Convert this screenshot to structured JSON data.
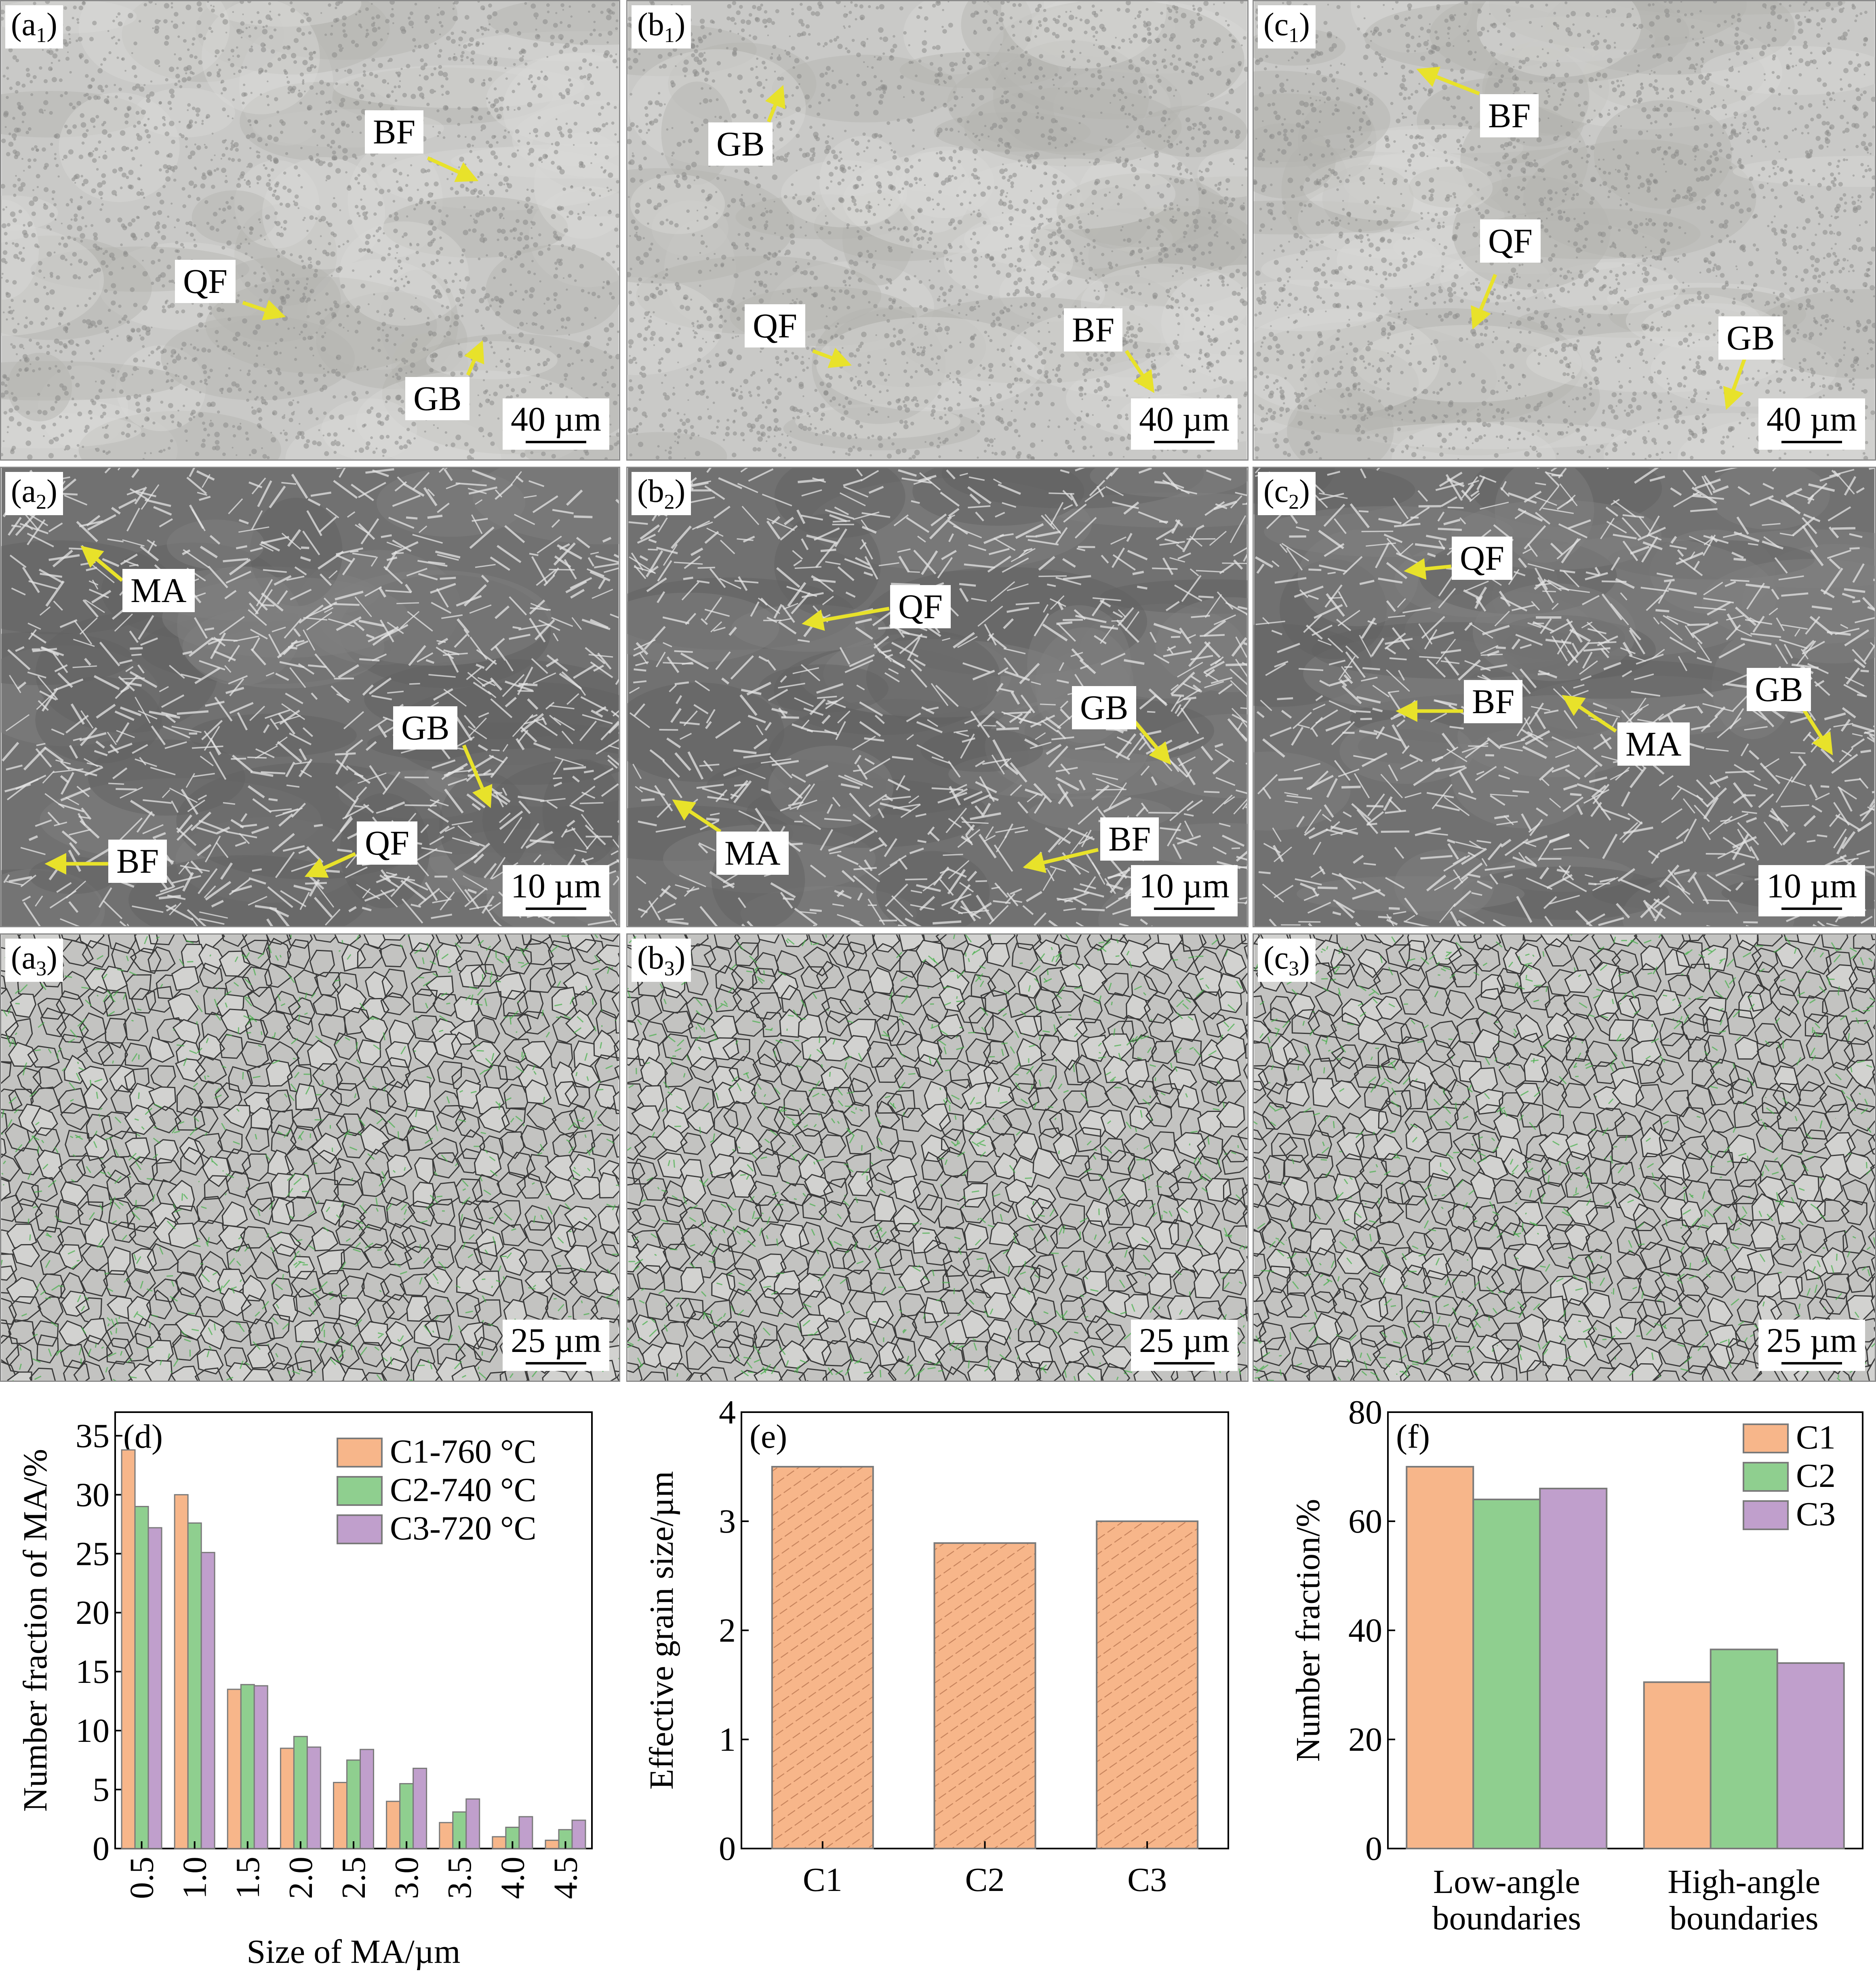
{
  "micrographs": [
    {
      "id": "a1",
      "letter": "a",
      "sub": "1",
      "scale": "40 µm",
      "tone": "light",
      "labels": [
        {
          "text": "BF"
        },
        {
          "text": "QF"
        },
        {
          "text": "GB"
        }
      ]
    },
    {
      "id": "b1",
      "letter": "b",
      "sub": "1",
      "scale": "40 µm",
      "tone": "light",
      "labels": [
        {
          "text": "GB"
        },
        {
          "text": "QF"
        },
        {
          "text": "BF"
        }
      ]
    },
    {
      "id": "c1",
      "letter": "c",
      "sub": "1",
      "scale": "40 µm",
      "tone": "light",
      "labels": [
        {
          "text": "BF"
        },
        {
          "text": "QF"
        },
        {
          "text": "GB"
        }
      ]
    },
    {
      "id": "a2",
      "letter": "a",
      "sub": "2",
      "scale": "10 µm",
      "tone": "sem",
      "labels": [
        {
          "text": "MA"
        },
        {
          "text": "GB"
        },
        {
          "text": "QF"
        },
        {
          "text": "BF"
        }
      ]
    },
    {
      "id": "b2",
      "letter": "b",
      "sub": "2",
      "scale": "10 µm",
      "tone": "sem",
      "labels": [
        {
          "text": "QF"
        },
        {
          "text": "GB"
        },
        {
          "text": "MA"
        },
        {
          "text": "BF"
        }
      ]
    },
    {
      "id": "c2",
      "letter": "c",
      "sub": "2",
      "scale": "10 µm",
      "tone": "sem",
      "labels": [
        {
          "text": "QF"
        },
        {
          "text": "BF"
        },
        {
          "text": "MA"
        },
        {
          "text": "GB"
        }
      ]
    },
    {
      "id": "a3",
      "letter": "a",
      "sub": "3",
      "scale": "25 µm",
      "tone": "ebsd",
      "labels": []
    },
    {
      "id": "b3",
      "letter": "b",
      "sub": "3",
      "scale": "25 µm",
      "tone": "ebsd",
      "labels": []
    },
    {
      "id": "c3",
      "letter": "c",
      "sub": "3",
      "scale": "25 µm",
      "tone": "ebsd",
      "labels": []
    }
  ],
  "colors": {
    "c1": "#f7b68a",
    "c2": "#8fcf8f",
    "c3": "#c09fcc",
    "arrow": "#e8e22a",
    "edge": "#7a7a7a"
  },
  "chart_data": [
    {
      "panel": "(d)",
      "type": "bar",
      "xlabel": "Size of MA/µm",
      "ylabel": "Number fraction of MA/%",
      "ylim": [
        0,
        37
      ],
      "yticks": [
        0,
        5,
        10,
        15,
        20,
        25,
        30,
        35
      ],
      "categories": [
        "0.5",
        "1.0",
        "1.5",
        "2.0",
        "2.5",
        "3.0",
        "3.5",
        "4.0",
        "4.5"
      ],
      "legend_position": "top-right",
      "series": [
        {
          "name": "C1-760 °C",
          "values": [
            33.8,
            30.0,
            13.5,
            8.5,
            5.6,
            4.0,
            2.2,
            1.0,
            0.7
          ]
        },
        {
          "name": "C2-740 °C",
          "values": [
            29.0,
            27.6,
            13.9,
            9.5,
            7.5,
            5.5,
            3.1,
            1.8,
            1.6
          ]
        },
        {
          "name": "C3-720 °C",
          "values": [
            27.2,
            25.1,
            13.8,
            8.6,
            8.4,
            6.8,
            4.2,
            2.7,
            2.4
          ]
        }
      ]
    },
    {
      "panel": "(e)",
      "type": "bar",
      "xlabel": "",
      "ylabel": "Effective grain size/µm",
      "ylim": [
        0,
        4
      ],
      "yticks": [
        0,
        1,
        2,
        3,
        4
      ],
      "categories": [
        "C1",
        "C2",
        "C3"
      ],
      "values": [
        3.5,
        2.8,
        3.0
      ]
    },
    {
      "panel": "(f)",
      "type": "bar",
      "xlabel": "",
      "ylabel": "Number fraction/%",
      "ylim": [
        0,
        80
      ],
      "yticks": [
        0,
        20,
        40,
        60,
        80
      ],
      "categories": [
        "Low-angle boundaries",
        "High-angle boundaries"
      ],
      "category_lines": [
        [
          "Low-angle",
          "boundaries"
        ],
        [
          "High-angle",
          "boundaries"
        ]
      ],
      "legend_position": "top-right",
      "series": [
        {
          "name": "C1",
          "values": [
            70,
            30.5
          ]
        },
        {
          "name": "C2",
          "values": [
            64,
            36.5
          ]
        },
        {
          "name": "C3",
          "values": [
            66,
            34
          ]
        }
      ]
    }
  ]
}
